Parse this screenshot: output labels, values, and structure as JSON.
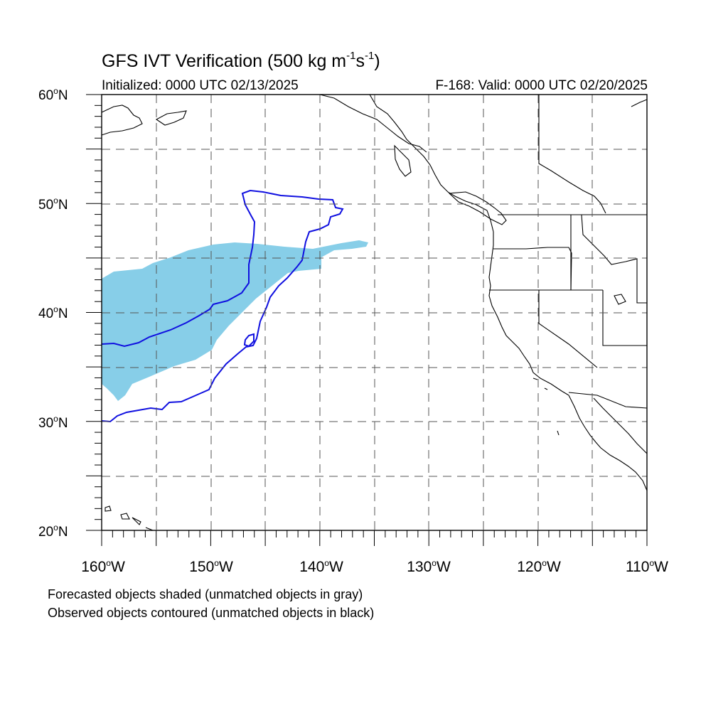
{
  "title": {
    "main": "GFS IVT Verification (500 kg m",
    "exp1": "-1",
    "s": "s",
    "exp2": "-1",
    "close": ")"
  },
  "initialized": "Initialized: 0000 UTC 02/13/2025",
  "valid": "F-168: Valid: 0000 UTC 02/20/2025",
  "map": {
    "lon_range": [
      -160,
      -110
    ],
    "lat_range": [
      20,
      60
    ],
    "grid": "dashed",
    "lat_labels": [
      {
        "num": "60",
        "unit": "N"
      },
      {
        "num": "50",
        "unit": "N"
      },
      {
        "num": "40",
        "unit": "N"
      },
      {
        "num": "30",
        "unit": "N"
      },
      {
        "num": "20",
        "unit": "N"
      }
    ],
    "lon_labels": [
      {
        "num": "160",
        "unit": "W"
      },
      {
        "num": "150",
        "unit": "W"
      },
      {
        "num": "140",
        "unit": "W"
      },
      {
        "num": "130",
        "unit": "W"
      },
      {
        "num": "120",
        "unit": "W"
      },
      {
        "num": "110",
        "unit": "W"
      }
    ],
    "deg_symbol": "o",
    "forecast_color": "#87CEE8",
    "observed_color": "#1010E0",
    "coastline_color": "#000000"
  },
  "legend": {
    "forecast_note": "Forecasted objects shaded (unmatched objects in gray)",
    "observed_note": "Observed objects contoured (unmatched objects in black)"
  }
}
